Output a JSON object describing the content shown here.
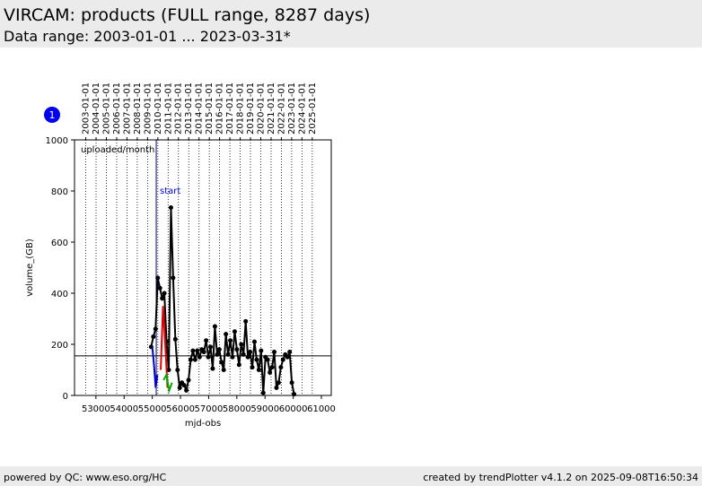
{
  "header": {
    "title": "VIRCAM: products (FULL range, 8287 days)",
    "subtitle": "Data range: 2003-01-01 ... 2023-03-31*"
  },
  "footer": {
    "left": "powered by QC: www.eso.org/HC",
    "right": "created by trendPlotter v4.1.2 on 2025-09-08T16:50:34"
  },
  "badge": "1",
  "chart_data": {
    "type": "line",
    "annotation": "uploaded/month",
    "xlabel": "mjd-obs",
    "ylabel": "volume_(GB)",
    "xlim": [
      52240,
      61350
    ],
    "ylim": [
      0,
      1000
    ],
    "xticks": [
      53000,
      54000,
      55000,
      56000,
      57000,
      58000,
      59000,
      60000,
      61000
    ],
    "yticks": [
      0,
      200,
      400,
      600,
      800,
      1000
    ],
    "top_ticks": [
      {
        "value": 52640,
        "label": "2003-01-01"
      },
      {
        "value": 53005,
        "label": "2004-01-01"
      },
      {
        "value": 53371,
        "label": "2005-01-01"
      },
      {
        "value": 53736,
        "label": "2006-01-01"
      },
      {
        "value": 54101,
        "label": "2007-01-01"
      },
      {
        "value": 54466,
        "label": "2008-01-01"
      },
      {
        "value": 54832,
        "label": "2009-01-01"
      },
      {
        "value": 55197,
        "label": "2010-01-01"
      },
      {
        "value": 55562,
        "label": "2011-01-01"
      },
      {
        "value": 55927,
        "label": "2012-01-01"
      },
      {
        "value": 56293,
        "label": "2013-01-01"
      },
      {
        "value": 56658,
        "label": "2014-01-01"
      },
      {
        "value": 57023,
        "label": "2015-01-01"
      },
      {
        "value": 57388,
        "label": "2016-01-01"
      },
      {
        "value": 57754,
        "label": "2017-01-01"
      },
      {
        "value": 58119,
        "label": "2018-01-01"
      },
      {
        "value": 58484,
        "label": "2019-01-01"
      },
      {
        "value": 58849,
        "label": "2020-01-01"
      },
      {
        "value": 59215,
        "label": "2021-01-01"
      },
      {
        "value": 59580,
        "label": "2022-01-01"
      },
      {
        "value": 59945,
        "label": "2023-01-01"
      },
      {
        "value": 60310,
        "label": "2024-01-01"
      },
      {
        "value": 60676,
        "label": "2025-01-01"
      }
    ],
    "grid": true,
    "reference_line": 155,
    "start": {
      "text": "start",
      "x": 55140
    },
    "series": [
      {
        "color": "#000000",
        "markers": true,
        "x": [
          54960,
          55038,
          55116,
          55194,
          55272,
          55350,
          55428,
          55506,
          55584,
          55662,
          55740,
          55818,
          55896,
          55974,
          56052,
          56130,
          56208,
          56286,
          56364,
          56442,
          56520,
          56598,
          56676,
          56754,
          56832,
          56910,
          56988,
          57066,
          57144,
          57222,
          57300,
          57378,
          57456,
          57534,
          57612,
          57690,
          57768,
          57846,
          57924,
          58002,
          58080,
          58158,
          58236,
          58314,
          58392,
          58470,
          58548,
          58626,
          58704,
          58782,
          58860,
          58938,
          59016,
          59094,
          59172,
          59250,
          59328,
          59406,
          59484,
          59562,
          59640,
          59718,
          59796,
          59874,
          59952,
          60030
        ],
        "values": [
          190,
          230,
          260,
          460,
          420,
          380,
          400,
          210,
          100,
          735,
          460,
          220,
          100,
          30,
          50,
          40,
          20,
          60,
          140,
          175,
          140,
          175,
          150,
          180,
          170,
          215,
          150,
          190,
          105,
          270,
          160,
          180,
          130,
          100,
          240,
          160,
          215,
          150,
          250,
          180,
          120,
          200,
          160,
          290,
          150,
          170,
          110,
          210,
          140,
          100,
          175,
          10,
          150,
          140,
          90,
          110,
          170,
          30,
          50,
          110,
          140,
          160,
          150,
          170,
          50,
          5
        ]
      },
      {
        "color": "#0000cc",
        "markers": false,
        "x": [
          55000,
          55060,
          55120,
          55180
        ],
        "values": [
          190,
          120,
          30,
          80
        ]
      },
      {
        "color": "#dd0000",
        "markers": false,
        "x": [
          55300,
          55380,
          55460,
          55540
        ],
        "values": [
          100,
          350,
          200,
          30
        ]
      },
      {
        "color": "#00aa00",
        "markers": false,
        "x": [
          55400,
          55500,
          55600,
          55700
        ],
        "values": [
          60,
          80,
          20,
          50
        ]
      }
    ]
  }
}
